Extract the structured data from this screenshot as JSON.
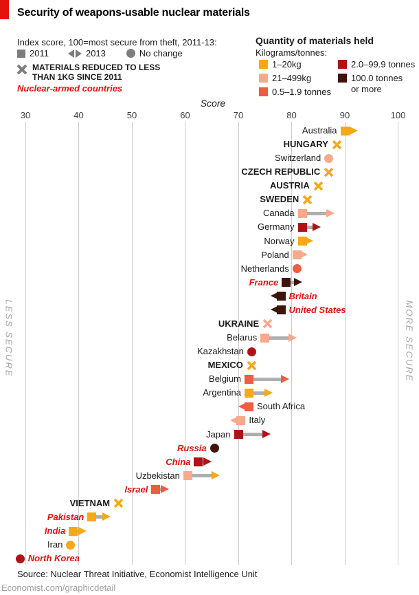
{
  "header": {
    "title": "Security of weapons-usable nuclear materials",
    "subtitle": "Index score, 100=most secure from theft, 2011-13:",
    "series_legend": [
      {
        "icon": "square-icon",
        "label": "2011"
      },
      {
        "icon": "arrows-icon",
        "label": "2013"
      },
      {
        "icon": "circle-icon",
        "label": "No change"
      }
    ],
    "x_note_line1": "MATERIALS REDUCED TO LESS",
    "x_note_line2": "THAN 1KG SINCE 2011",
    "nuclear_note": "Nuclear-armed countries"
  },
  "quantity_legend": {
    "title": "Quantity of materials held",
    "subtitle": "Kilograms/tonnes:",
    "items": [
      {
        "key": "kg1_20",
        "label": "1–20kg"
      },
      {
        "key": "kg21_499",
        "label": "21–499kg"
      },
      {
        "key": "t05_19",
        "label": "0.5–1.9 tonnes"
      },
      {
        "key": "t2_99",
        "label": "2.0–99.9 tonnes"
      },
      {
        "key": "t100",
        "label_line1": "100.0 tonnes",
        "label_line2": "or more"
      }
    ]
  },
  "colors": {
    "kg1_20": "#F6A816",
    "kg21_499": "#F8A98C",
    "t05_19": "#F05C41",
    "t2_99": "#B01317",
    "t100": "#3E150C",
    "legend_gray": "#7D7D7D",
    "shaft_gray": "#AFAFAF",
    "gridline": "#CBCBCB",
    "economist_red": "#E3120B"
  },
  "side_labels": {
    "left": "LESS SECURE",
    "right": "MORE SECURE"
  },
  "footer": {
    "source": "Source: Nuclear Threat Initiative, Economist Intelligence Unit",
    "site": "Economist.com/graphicdetail"
  },
  "chart_data": {
    "type": "scatter",
    "variant": "change-arrow (2011 square to 2013 arrowhead), X = materials reduced below 1kg, circle = no change",
    "title": "Security of weapons-usable nuclear materials",
    "xlabel": "Score",
    "xlim": [
      30,
      100
    ],
    "x_ticks": [
      30,
      40,
      50,
      60,
      70,
      80,
      90,
      100
    ],
    "grid": true,
    "rows": [
      {
        "country": "Australia",
        "label_style": "plain",
        "marker": "arrow",
        "dir": "right",
        "score_2011": 90,
        "score_2013": 92.5,
        "cat_2011": "kg1_20",
        "cat_2013": "kg1_20",
        "label_side": "left"
      },
      {
        "country": "HUNGARY",
        "label_style": "caps",
        "marker": "x",
        "score": 88.5,
        "cat": "kg1_20",
        "label_side": "left"
      },
      {
        "country": "Switzerland",
        "label_style": "plain",
        "marker": "circle",
        "score": 87,
        "cat": "kg21_499",
        "label_side": "left"
      },
      {
        "country": "CZECH REPUBLIC",
        "label_style": "caps",
        "marker": "x",
        "score": 87,
        "cat": "kg1_20",
        "label_side": "left"
      },
      {
        "country": "AUSTRIA",
        "label_style": "caps",
        "marker": "x",
        "score": 85,
        "cat": "kg1_20",
        "label_side": "left"
      },
      {
        "country": "SWEDEN",
        "label_style": "caps",
        "marker": "x",
        "score": 83,
        "cat": "kg1_20",
        "label_side": "left"
      },
      {
        "country": "Canada",
        "label_style": "plain",
        "marker": "arrow",
        "dir": "right",
        "score_2011": 82,
        "score_2013": 88,
        "cat_2011": "kg21_499",
        "cat_2013": "kg21_499",
        "label_side": "left"
      },
      {
        "country": "Germany",
        "label_style": "plain",
        "marker": "arrow",
        "dir": "right",
        "score_2011": 82,
        "score_2013": 85.5,
        "cat_2011": "t2_99",
        "cat_2013": "t2_99",
        "label_side": "left"
      },
      {
        "country": "Norway",
        "label_style": "plain",
        "marker": "arrow",
        "dir": "right",
        "score_2011": 82,
        "score_2013": 84,
        "cat_2011": "kg1_20",
        "cat_2013": "kg1_20",
        "label_side": "left"
      },
      {
        "country": "Poland",
        "label_style": "plain",
        "marker": "arrow",
        "dir": "right",
        "score_2011": 81,
        "score_2013": 83,
        "cat_2011": "kg21_499",
        "cat_2013": "kg21_499",
        "label_side": "left"
      },
      {
        "country": "Netherlands",
        "label_style": "plain",
        "marker": "circle",
        "score": 81,
        "cat": "t05_19",
        "label_side": "left"
      },
      {
        "country": "France",
        "label_style": "nuclear",
        "marker": "arrow",
        "dir": "right",
        "score_2011": 79,
        "score_2013": 82,
        "cat_2011": "t100",
        "cat_2013": "t100",
        "label_side": "left"
      },
      {
        "country": "Britain",
        "label_style": "nuclear",
        "marker": "arrow",
        "dir": "left",
        "score_2011": 78,
        "score_2013": 76,
        "cat_2011": "t100",
        "cat_2013": "t100",
        "label_side": "right"
      },
      {
        "country": "United States",
        "label_style": "nuclear",
        "marker": "arrow",
        "dir": "left",
        "score_2011": 78,
        "score_2013": 76,
        "cat_2011": "t100",
        "cat_2013": "t100",
        "label_side": "right"
      },
      {
        "country": "UKRAINE",
        "label_style": "caps",
        "marker": "x",
        "score": 75.5,
        "cat": "kg21_499",
        "label_side": "left"
      },
      {
        "country": "Belarus",
        "label_style": "plain",
        "marker": "arrow",
        "dir": "right",
        "score_2011": 75,
        "score_2013": 81,
        "cat_2011": "kg21_499",
        "cat_2013": "kg21_499",
        "label_side": "left"
      },
      {
        "country": "Kazakhstan",
        "label_style": "plain",
        "marker": "circle",
        "score": 72.5,
        "cat": "t2_99",
        "label_side": "left"
      },
      {
        "country": "MEXICO",
        "label_style": "caps",
        "marker": "x",
        "score": 72.5,
        "cat": "kg1_20",
        "label_side": "left"
      },
      {
        "country": "Belgium",
        "label_style": "plain",
        "marker": "arrow",
        "dir": "right",
        "score_2011": 72,
        "score_2013": 79.5,
        "cat_2011": "t05_19",
        "cat_2013": "t05_19",
        "label_side": "left"
      },
      {
        "country": "Argentina",
        "label_style": "plain",
        "marker": "arrow",
        "dir": "right",
        "score_2011": 72,
        "score_2013": 76.5,
        "cat_2011": "kg1_20",
        "cat_2013": "kg1_20",
        "label_side": "left"
      },
      {
        "country": "South Africa",
        "label_style": "plain",
        "marker": "arrow",
        "dir": "left",
        "score_2011": 72,
        "score_2013": 70,
        "cat_2011": "t05_19",
        "cat_2013": "t05_19",
        "label_side": "right"
      },
      {
        "country": "Italy",
        "label_style": "plain",
        "marker": "arrow",
        "dir": "left",
        "score_2011": 70.5,
        "score_2013": 68.5,
        "cat_2011": "kg21_499",
        "cat_2013": "kg21_499",
        "label_side": "right"
      },
      {
        "country": "Japan",
        "label_style": "plain",
        "marker": "arrow",
        "dir": "right",
        "score_2011": 70,
        "score_2013": 76,
        "cat_2011": "t2_99",
        "cat_2013": "t2_99",
        "label_side": "left"
      },
      {
        "country": "Russia",
        "label_style": "nuclear",
        "marker": "circle",
        "score": 65.5,
        "cat": "t100",
        "label_side": "left"
      },
      {
        "country": "China",
        "label_style": "nuclear",
        "marker": "arrow",
        "dir": "right",
        "score_2011": 62.5,
        "score_2013": 65,
        "cat_2011": "t2_99",
        "cat_2013": "t2_99",
        "label_side": "left"
      },
      {
        "country": "Uzbekistan",
        "label_style": "plain",
        "marker": "arrow",
        "dir": "right",
        "score_2011": 60.5,
        "score_2013": 66.5,
        "cat_2011": "kg21_499",
        "cat_2013": "kg1_20",
        "label_side": "left"
      },
      {
        "country": "Israel",
        "label_style": "nuclear",
        "marker": "arrow",
        "dir": "right",
        "score_2011": 54.5,
        "score_2013": 57,
        "cat_2011": "t05_19",
        "cat_2013": "t05_19",
        "label_side": "left"
      },
      {
        "country": "VIETNAM",
        "label_style": "caps",
        "marker": "x",
        "score": 47.5,
        "cat": "kg1_20",
        "label_side": "left"
      },
      {
        "country": "Pakistan",
        "label_style": "nuclear",
        "marker": "arrow",
        "dir": "right",
        "score_2011": 42.5,
        "score_2013": 46,
        "cat_2011": "kg1_20",
        "cat_2013": "kg1_20",
        "label_side": "left"
      },
      {
        "country": "India",
        "label_style": "nuclear",
        "marker": "arrow",
        "dir": "right",
        "score_2011": 39,
        "score_2013": 41.5,
        "cat_2011": "kg1_20",
        "cat_2013": "kg1_20",
        "label_side": "left"
      },
      {
        "country": "Iran",
        "label_style": "plain",
        "marker": "circle",
        "score": 38.5,
        "cat": "kg1_20",
        "label_side": "left"
      },
      {
        "country": "North Korea",
        "label_style": "nuclear",
        "marker": "circle",
        "score": 29,
        "cat": "t2_99",
        "label_side": "right"
      }
    ]
  }
}
